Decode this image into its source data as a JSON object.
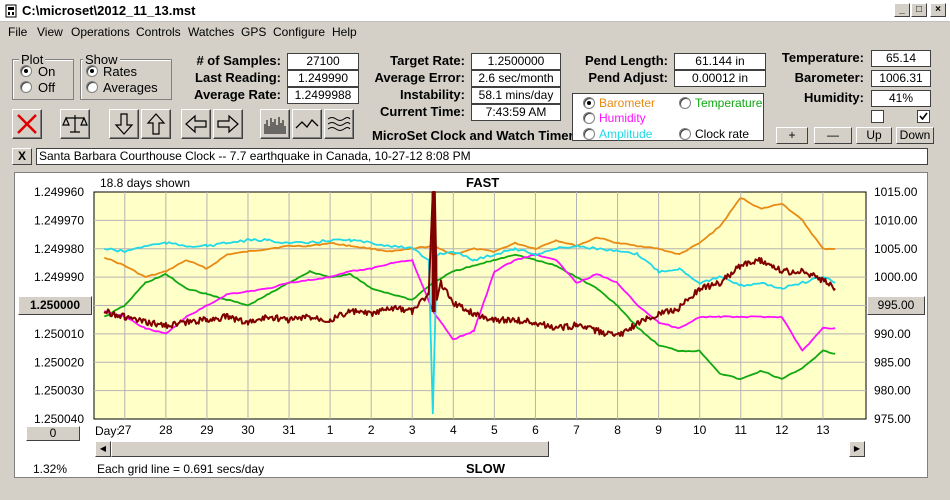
{
  "window": {
    "title": "C:\\microset\\2012_11_13.mst"
  },
  "menu": [
    "File",
    "View",
    "Operations",
    "Controls",
    "Watches",
    "GPS",
    "Configure",
    "Help"
  ],
  "plot_group": {
    "title": "Plot",
    "on": "On",
    "off": "Off",
    "selected": "On"
  },
  "show_group": {
    "title": "Show",
    "rates": "Rates",
    "averages": "Averages",
    "selected": "Rates"
  },
  "stats": {
    "samples_label": "# of Samples:",
    "samples": "27100",
    "last_label": "Last Reading:",
    "last": "1.249990",
    "avg_label": "Average Rate:",
    "avg": "1.2499988",
    "target_label": "Target Rate:",
    "target": "1.2500000",
    "avgerr_label": "Average Error:",
    "avgerr": "2.6 sec/month",
    "instab_label": "Instability:",
    "instab": "58.1 mins/day",
    "time_label": "Current Time:",
    "time": "7:43:59 AM",
    "pendlen_label": "Pend Length:",
    "pendlen": "61.144 in",
    "pendadj_label": "Pend Adjust:",
    "pendadj": "0.00012 in",
    "temp_label": "Temperature:",
    "temp": "65.14",
    "baro_label": "Barometer:",
    "baro": "1006.31",
    "humid_label": "Humidity:",
    "humid": "41%"
  },
  "app_title": "MicroSet Clock and Watch Timer",
  "series_select": {
    "barometer": "Barometer",
    "temperature": "Temperature",
    "humidity": "Humidity",
    "amplitude": "Amplitude",
    "clockrate": "Clock rate",
    "selected": "Barometer"
  },
  "small_buttons": {
    "plus": "+",
    "minus": "—",
    "up": "Up",
    "down": "Down"
  },
  "checkboxes": {
    "left_checked": false,
    "right_checked": true
  },
  "note": {
    "close": "X",
    "text": "Santa Barbara Courthouse Clock   -- 7.7 earthquake in Canada, 10-27-12 8:08 PM"
  },
  "chart_header": {
    "days_shown": "18.8 days shown",
    "fast": "FAST",
    "slow": "SLOW",
    "grid_note": "Each grid line = 0.691 secs/day",
    "percent": "1.32%",
    "day_label": "Day:"
  },
  "chart_side": {
    "left_value": "1.250000",
    "right_value": "995.00",
    "left_zero": "0"
  },
  "colors": {
    "plot_bg": "#ffffc8",
    "rate": "#800000",
    "barometer": "#e88a14",
    "temperature": "#10a810",
    "humidity": "#ff10ff",
    "amplitude": "#20d8e8"
  },
  "chart_data": {
    "type": "line",
    "x_ticks": [
      "27",
      "28",
      "29",
      "30",
      "31",
      "1",
      "2",
      "3",
      "4",
      "5",
      "6",
      "7",
      "8",
      "9",
      "10",
      "11",
      "12",
      "13"
    ],
    "y_left_ticks": [
      "1.249960",
      "1.249970",
      "1.249980",
      "1.249990",
      "1.250000",
      "1.250010",
      "1.250020",
      "1.250030",
      "1.250040"
    ],
    "y_left_range": [
      1.24996,
      1.25004
    ],
    "y_right_ticks": [
      "1015.00",
      "1010.00",
      "1005.00",
      "1000.00",
      "995.00",
      "990.00",
      "985.00",
      "980.00",
      "975.00"
    ],
    "y_right_range": [
      975,
      1015
    ],
    "grid": true,
    "series": [
      {
        "key": "barometer",
        "axis": "right",
        "x": [
          26.5,
          27,
          27.5,
          28,
          28.5,
          29,
          29.5,
          30,
          30.5,
          31,
          31.5,
          32,
          32.5,
          33,
          33.5,
          34,
          34.5,
          35,
          35.5,
          36,
          36.5,
          37,
          37.5,
          38,
          38.5,
          39,
          39.5,
          40,
          40.5,
          41,
          41.5,
          42,
          42.5,
          43,
          43.5,
          44,
          44.3
        ],
        "y": [
          1003.5,
          1002,
          1000,
          1001,
          1003,
          1001.5,
          1004,
          1004.5,
          1005,
          1005.5,
          1005.5,
          1006,
          1005.5,
          1005,
          1004.5,
          1005,
          1005.5,
          1004,
          1005,
          1004.5,
          1006,
          1005,
          1006.5,
          1005.5,
          1007,
          1006,
          1005.5,
          1005,
          1004,
          1006,
          1009,
          1014,
          1012,
          1013,
          1010,
          1005,
          1005
        ]
      },
      {
        "key": "temperature",
        "axis": "right",
        "x": [
          26.5,
          27,
          27.5,
          28,
          28.5,
          29,
          29.5,
          30,
          30.5,
          31,
          31.5,
          32,
          32.5,
          33,
          33.5,
          34,
          34.5,
          35,
          35.5,
          36,
          36.5,
          37,
          37.5,
          38,
          38.5,
          39,
          39.5,
          40,
          40.5,
          41,
          41.5,
          42,
          42.5,
          43,
          43.5,
          44,
          44.3
        ],
        "y": [
          993,
          995,
          999,
          1000.5,
          998,
          997,
          996,
          995,
          997,
          999,
          1001,
          1000,
          1000.5,
          998,
          997,
          996,
          999,
          1001,
          1002,
          1003,
          1004,
          1003,
          1002,
          1000,
          998,
          995,
          991,
          988,
          987,
          987,
          983,
          982,
          983.5,
          982,
          984,
          987,
          986.5
        ]
      },
      {
        "key": "humidity",
        "axis": "right",
        "x": [
          26.5,
          27,
          27.5,
          28,
          28.5,
          29,
          29.5,
          30,
          30.5,
          31,
          31.5,
          32,
          32.5,
          33,
          33.5,
          34,
          34.5,
          35,
          35.5,
          36,
          36.5,
          37,
          37.5,
          38,
          38.5,
          39,
          39.5,
          40,
          40.5,
          41,
          41.5,
          42,
          42.5,
          43,
          43.5,
          44,
          44.3
        ],
        "y": [
          994,
          993,
          991,
          990,
          993,
          995,
          997,
          997.5,
          998,
          999,
          999.5,
          1000,
          1001,
          1001.5,
          1002.5,
          1003,
          994,
          989,
          990.5,
          1001,
          1003,
          1004,
          1003,
          999,
          1000.5,
          999,
          995,
          992,
          991,
          993,
          993,
          993,
          993,
          993,
          987,
          991,
          991
        ]
      },
      {
        "key": "amplitude",
        "axis": "right",
        "x": [
          26.5,
          27,
          27.5,
          28,
          28.5,
          29,
          29.5,
          30,
          30.5,
          31,
          31.5,
          32,
          32.5,
          33,
          33.5,
          34,
          34.4,
          34.5,
          34.6,
          35,
          35.5,
          36,
          36.5,
          37,
          37.5,
          38,
          38.5,
          39,
          39.5,
          40,
          40.5,
          41,
          41.5,
          42,
          42.5,
          43,
          43.5,
          44,
          44.3
        ],
        "y": [
          1005,
          1004.5,
          1005.5,
          1006,
          1005.5,
          1005.5,
          1006,
          1006.5,
          1006.5,
          1006,
          1006,
          1006.5,
          1006.5,
          1006,
          1005.5,
          1005,
          1003,
          976,
          1004,
          1004.5,
          1003,
          1004,
          1005,
          1004,
          1005,
          1005.5,
          1005,
          1004.5,
          1004,
          1001,
          1001.5,
          999,
          1000,
          998.5,
          999,
          998,
          999,
          1000,
          999
        ]
      },
      {
        "key": "rate",
        "axis": "left",
        "x": [
          26.5,
          27,
          27.5,
          28,
          28.5,
          29,
          29.5,
          30,
          30.5,
          31,
          31.5,
          32,
          32.5,
          33,
          33.5,
          34,
          34.4,
          34.5,
          34.55,
          34.6,
          34.7,
          35,
          35.5,
          36,
          36.5,
          37,
          37.5,
          38,
          38.5,
          39,
          39.5,
          40,
          40.5,
          41,
          41.5,
          42,
          42.5,
          43,
          43.5,
          44,
          44.3
        ],
        "y": [
          1.250002,
          1.250004,
          1.250006,
          1.250007,
          1.250006,
          1.250005,
          1.250004,
          1.250006,
          1.250004,
          1.250005,
          1.250004,
          1.250005,
          1.250002,
          1.250003,
          1.250001,
          1.250002,
          1.249996,
          1.24996,
          1.24996,
          1.249998,
          1.249992,
          1.249999,
          1.250003,
          1.250005,
          1.250005,
          1.250006,
          1.250008,
          1.250007,
          1.250009,
          1.250011,
          1.250006,
          1.250003,
          1.250001,
          1.249994,
          1.249992,
          1.249986,
          1.249984,
          1.249988,
          1.249988,
          1.249991,
          1.249994
        ]
      }
    ]
  }
}
